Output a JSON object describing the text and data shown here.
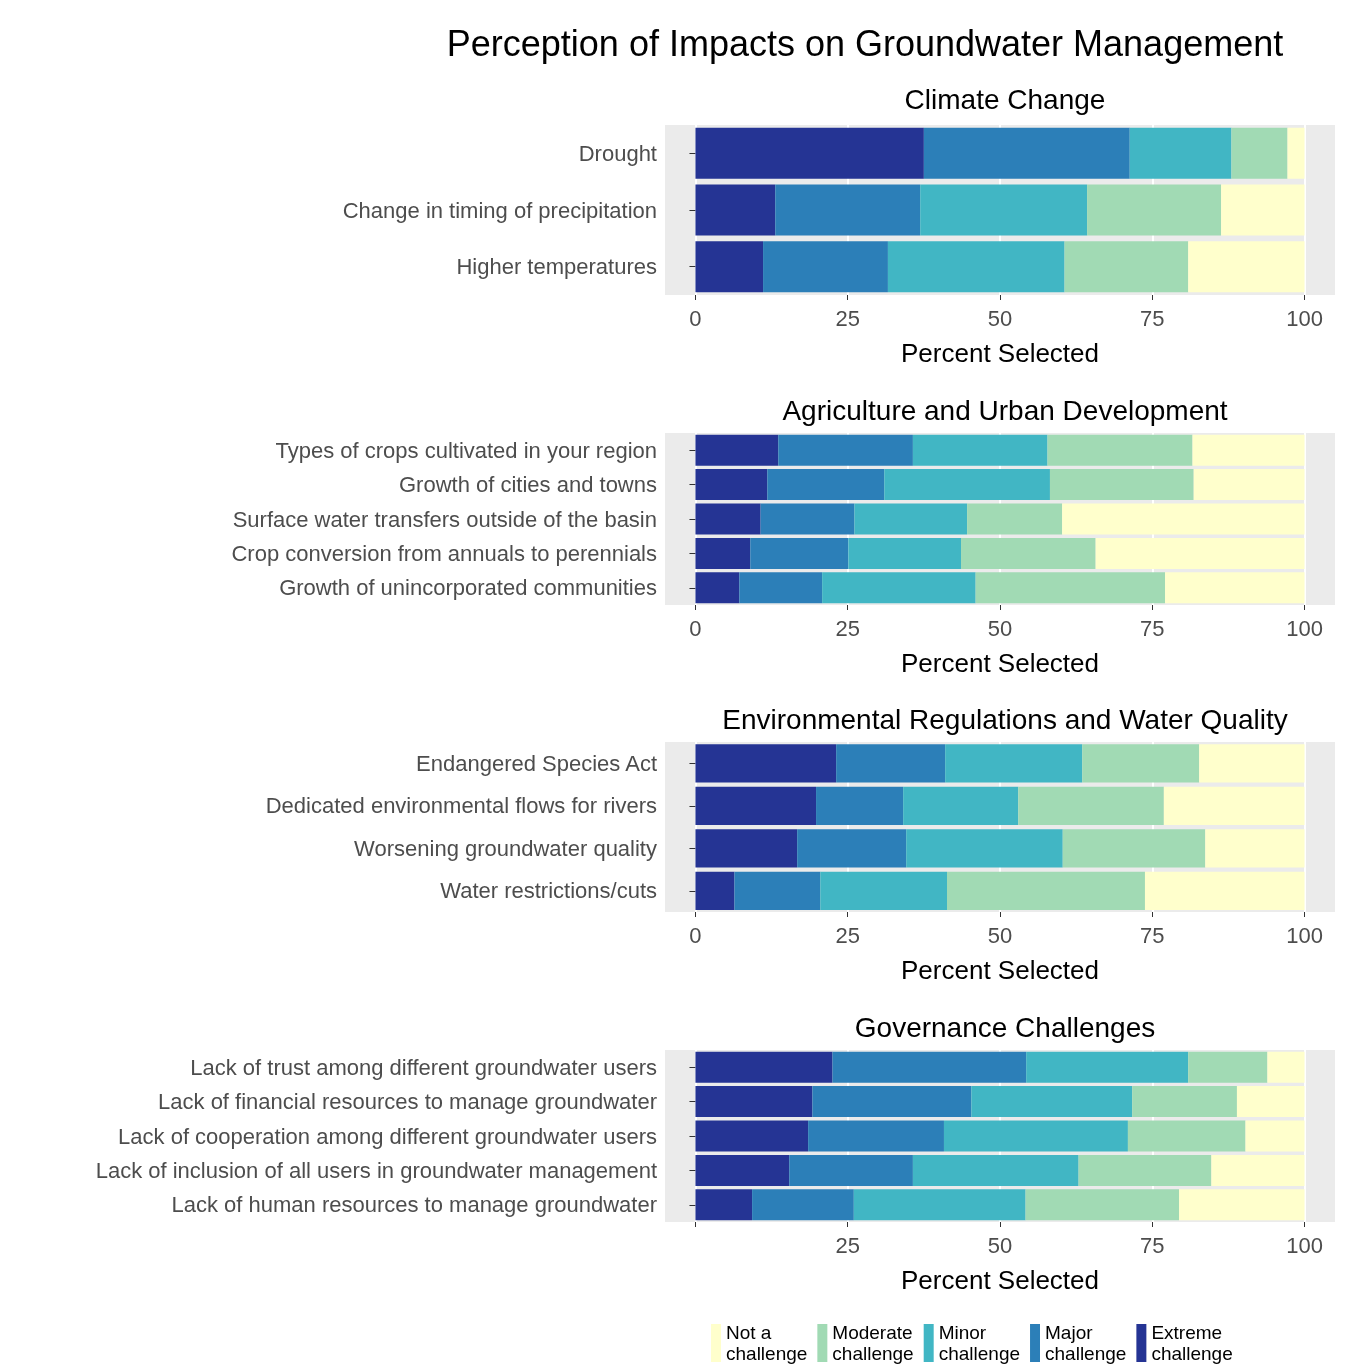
{
  "chart_data": [
    {
      "type": "bar",
      "orientation": "horizontal",
      "stacked": true,
      "title": "Perception of Impacts on Groundwater Management",
      "subtitle": "Climate Change",
      "xlabel": "Percent Selected",
      "categories": [
        "Drought",
        "Change in timing of precipitation",
        "Higher temperatures"
      ],
      "series": [
        {
          "color": "#253494",
          "values": [
            37.5,
            13.1,
            11.1
          ]
        },
        {
          "color": "#2c7fb8",
          "values": [
            33.8,
            23.8,
            20.5
          ]
        },
        {
          "color": "#41b6c4",
          "values": [
            16.7,
            27.4,
            29.0
          ]
        },
        {
          "color": "#a1dab4",
          "values": [
            9.2,
            22.0,
            20.3
          ]
        },
        {
          "color": "#ffffcc",
          "values": [
            2.8,
            13.7,
            19.1
          ]
        }
      ],
      "xlim": [
        -5,
        105
      ],
      "xticks": [
        0,
        25,
        50,
        75,
        100
      ],
      "grid": "x",
      "legend": false
    },
    {
      "type": "bar",
      "orientation": "horizontal",
      "stacked": true,
      "title": "Agriculture and Urban Development",
      "xlabel": "Percent Selected",
      "categories": [
        "Types of crops cultivated in your region",
        "Growth of cities and towns",
        "Surface water transfers outside of the basin",
        "Crop conversion from annuals to perennials",
        "Growth of unincorporated communities"
      ],
      "series": [
        {
          "color": "#253494",
          "values": [
            13.6,
            11.8,
            10.7,
            9.0,
            7.2
          ]
        },
        {
          "color": "#2c7fb8",
          "values": [
            22.1,
            19.2,
            15.4,
            16.1,
            13.6
          ]
        },
        {
          "color": "#41b6c4",
          "values": [
            22.1,
            27.2,
            18.5,
            18.5,
            25.2
          ]
        },
        {
          "color": "#a1dab4",
          "values": [
            23.8,
            23.6,
            15.6,
            22.1,
            31.1
          ]
        },
        {
          "color": "#ffffcc",
          "values": [
            18.4,
            18.2,
            39.8,
            34.3,
            22.9
          ]
        }
      ],
      "xlim": [
        -5,
        105
      ],
      "xticks": [
        0,
        25,
        50,
        75,
        100
      ],
      "grid": "x",
      "legend": false
    },
    {
      "type": "bar",
      "orientation": "horizontal",
      "stacked": true,
      "title": "Environmental Regulations and Water Quality",
      "xlabel": "Percent Selected",
      "categories": [
        "Endangered Species Act",
        "Dedicated environmental flows for rivers",
        "Worsening groundwater quality",
        "Water restrictions/cuts"
      ],
      "series": [
        {
          "color": "#253494",
          "values": [
            23.1,
            19.8,
            16.7,
            6.4
          ]
        },
        {
          "color": "#2c7fb8",
          "values": [
            17.9,
            14.3,
            17.9,
            14.1
          ]
        },
        {
          "color": "#41b6c4",
          "values": [
            22.5,
            18.9,
            25.7,
            20.8
          ]
        },
        {
          "color": "#a1dab4",
          "values": [
            19.2,
            23.9,
            23.4,
            32.5
          ]
        },
        {
          "color": "#ffffcc",
          "values": [
            17.3,
            23.1,
            16.3,
            26.2
          ]
        }
      ],
      "xlim": [
        -5,
        105
      ],
      "xticks": [
        0,
        25,
        50,
        75,
        100
      ],
      "grid": "x",
      "legend": false
    },
    {
      "type": "bar",
      "orientation": "horizontal",
      "stacked": true,
      "title": "Governance Challenges",
      "xlabel": "Percent Selected",
      "categories": [
        "Lack of trust among different groundwater users",
        "Lack of financial resources to manage groundwater",
        "Lack of cooperation among different groundwater users",
        "Lack of inclusion of all users in groundwater management",
        "Lack of human resources to manage groundwater"
      ],
      "series": [
        {
          "name": "Extreme challenge",
          "color": "#253494",
          "values": [
            22.5,
            19.2,
            18.5,
            15.4,
            9.3
          ]
        },
        {
          "name": "Major challenge",
          "color": "#2c7fb8",
          "values": [
            31.8,
            26.1,
            22.3,
            20.3,
            16.7
          ]
        },
        {
          "name": "Minor challenge",
          "color": "#41b6c4",
          "values": [
            26.6,
            26.4,
            30.2,
            27.2,
            28.2
          ]
        },
        {
          "name": "Moderate challenge",
          "color": "#a1dab4",
          "values": [
            13.0,
            17.2,
            19.3,
            21.8,
            25.2
          ]
        },
        {
          "name": "Not a challenge",
          "color": "#ffffcc",
          "values": [
            6.1,
            11.1,
            9.7,
            15.3,
            20.6
          ]
        }
      ],
      "xlim": [
        -5,
        105
      ],
      "xticks": [
        {
          "value": 0,
          "label": null
        },
        25,
        50,
        75,
        100
      ],
      "grid": "x",
      "legend": "bottom"
    }
  ]
}
